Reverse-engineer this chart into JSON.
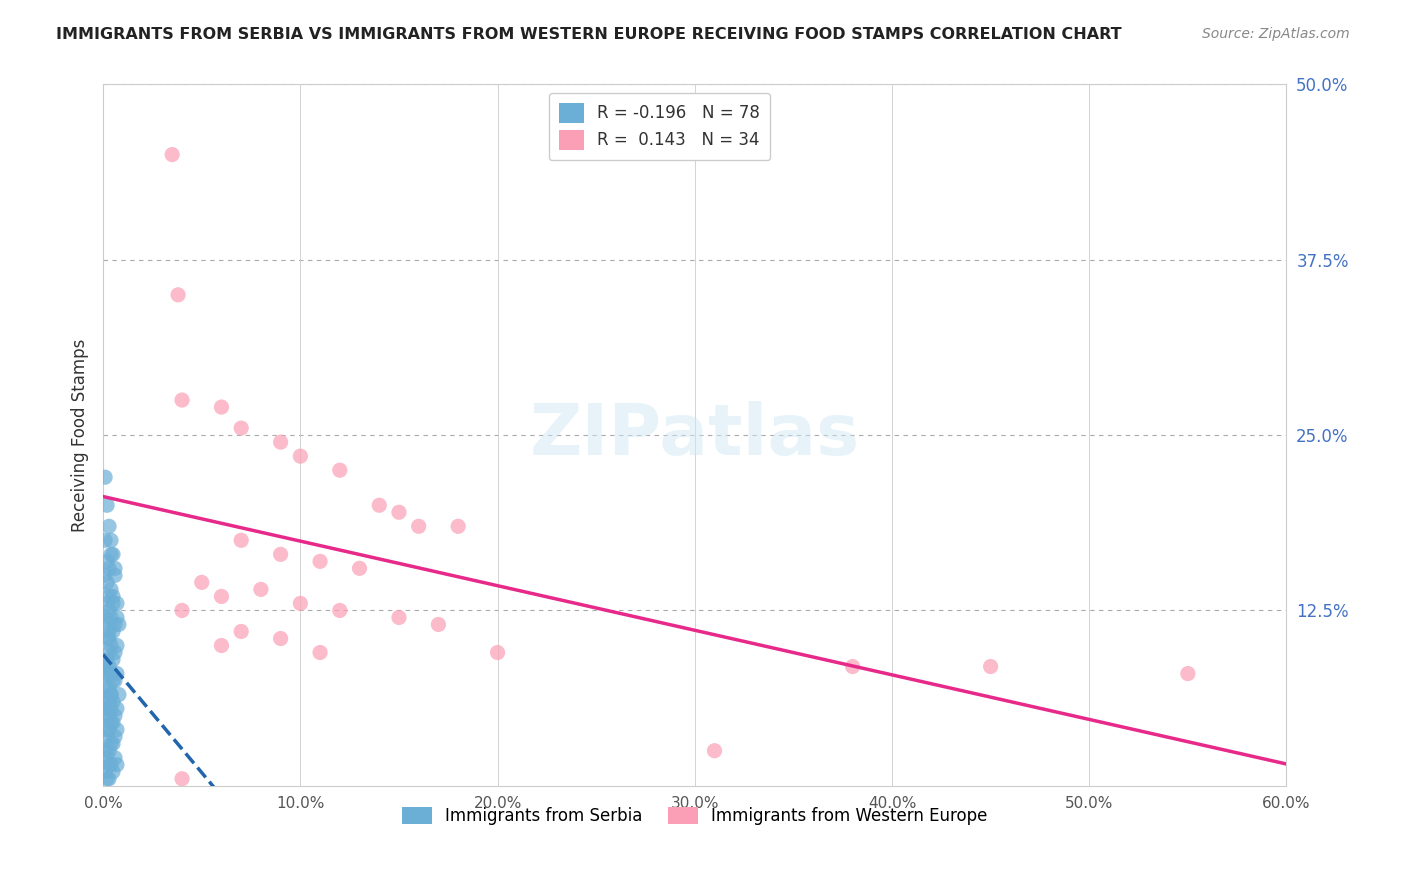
{
  "title": "IMMIGRANTS FROM SERBIA VS IMMIGRANTS FROM WESTERN EUROPE RECEIVING FOOD STAMPS CORRELATION CHART",
  "source": "Source: ZipAtlas.com",
  "ylabel": "Receiving Food Stamps",
  "xlabel_bottom": "",
  "legend_label_1": "Immigrants from Serbia",
  "legend_label_2": "Immigrants from Western Europe",
  "R1": "-0.196",
  "N1": "78",
  "R2": "0.143",
  "N2": "34",
  "color_serbia": "#6baed6",
  "color_western": "#fa9fb5",
  "color_serbia_line": "#2166ac",
  "color_western_line": "#e7298a",
  "color_serbia_dark": "#4292c6",
  "color_western_dark": "#f768a1",
  "xlim": [
    0,
    0.6
  ],
  "ylim": [
    0,
    0.5
  ],
  "xtick_labels": [
    "0.0%",
    "10.0%",
    "20.0%",
    "30.0%",
    "40.0%",
    "50.0%",
    "60.0%"
  ],
  "xtick_values": [
    0.0,
    0.1,
    0.2,
    0.3,
    0.4,
    0.5,
    0.6
  ],
  "ytick_labels_right": [
    "12.5%",
    "25.0%",
    "37.5%",
    "50.0%"
  ],
  "ytick_values_right": [
    0.125,
    0.25,
    0.375,
    0.5
  ],
  "grid_dashes": [
    4,
    4
  ],
  "watermark": "ZIPatlas",
  "serbia_x": [
    0.001,
    0.002,
    0.003,
    0.001,
    0.004,
    0.005,
    0.002,
    0.003,
    0.006,
    0.001,
    0.002,
    0.004,
    0.003,
    0.005,
    0.007,
    0.002,
    0.003,
    0.001,
    0.004,
    0.006,
    0.008,
    0.003,
    0.005,
    0.002,
    0.007,
    0.004,
    0.003,
    0.006,
    0.002,
    0.005,
    0.001,
    0.003,
    0.004,
    0.007,
    0.002,
    0.005,
    0.006,
    0.003,
    0.001,
    0.004,
    0.008,
    0.002,
    0.003,
    0.005,
    0.007,
    0.004,
    0.001,
    0.006,
    0.003,
    0.002,
    0.005,
    0.004,
    0.007,
    0.003,
    0.001,
    0.006,
    0.002,
    0.005,
    0.004,
    0.003,
    0.001,
    0.002,
    0.006,
    0.007,
    0.003,
    0.004,
    0.005,
    0.001,
    0.002,
    0.003,
    0.004,
    0.006,
    0.005,
    0.007,
    0.002,
    0.003,
    0.001,
    0.004
  ],
  "serbia_y": [
    0.22,
    0.2,
    0.185,
    0.175,
    0.165,
    0.165,
    0.16,
    0.155,
    0.15,
    0.15,
    0.145,
    0.14,
    0.135,
    0.135,
    0.13,
    0.13,
    0.125,
    0.12,
    0.12,
    0.115,
    0.115,
    0.11,
    0.11,
    0.105,
    0.1,
    0.1,
    0.095,
    0.095,
    0.09,
    0.09,
    0.085,
    0.085,
    0.08,
    0.08,
    0.08,
    0.075,
    0.075,
    0.07,
    0.07,
    0.065,
    0.065,
    0.06,
    0.06,
    0.06,
    0.055,
    0.055,
    0.055,
    0.05,
    0.05,
    0.05,
    0.045,
    0.045,
    0.04,
    0.04,
    0.04,
    0.035,
    0.035,
    0.03,
    0.03,
    0.025,
    0.025,
    0.02,
    0.02,
    0.015,
    0.015,
    0.015,
    0.01,
    0.01,
    0.005,
    0.005,
    0.175,
    0.155,
    0.13,
    0.12,
    0.115,
    0.105,
    0.08,
    0.065
  ],
  "western_x": [
    0.035,
    0.038,
    0.04,
    0.06,
    0.07,
    0.09,
    0.1,
    0.12,
    0.14,
    0.15,
    0.16,
    0.18,
    0.07,
    0.09,
    0.11,
    0.13,
    0.05,
    0.08,
    0.06,
    0.1,
    0.12,
    0.04,
    0.15,
    0.17,
    0.07,
    0.09,
    0.06,
    0.11,
    0.2,
    0.38,
    0.45,
    0.55,
    0.31,
    0.04
  ],
  "western_y": [
    0.45,
    0.35,
    0.275,
    0.27,
    0.255,
    0.245,
    0.235,
    0.225,
    0.2,
    0.195,
    0.185,
    0.185,
    0.175,
    0.165,
    0.16,
    0.155,
    0.145,
    0.14,
    0.135,
    0.13,
    0.125,
    0.125,
    0.12,
    0.115,
    0.11,
    0.105,
    0.1,
    0.095,
    0.095,
    0.085,
    0.085,
    0.08,
    0.025,
    0.005
  ]
}
